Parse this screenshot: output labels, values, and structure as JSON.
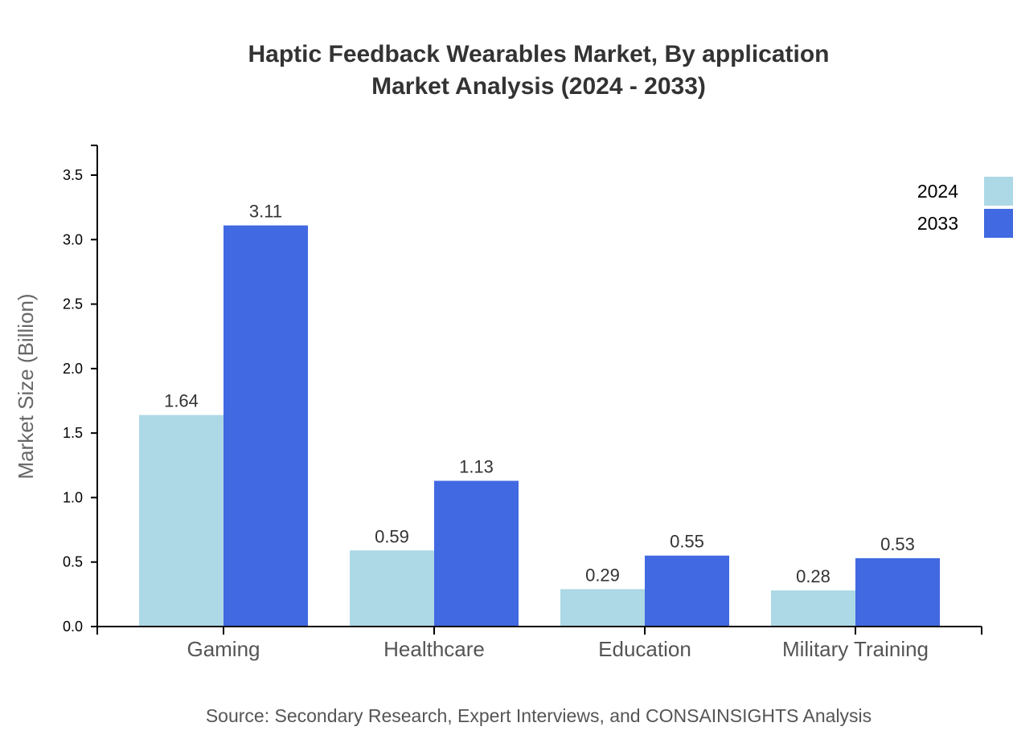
{
  "chart_data": {
    "type": "bar",
    "title": "Haptic Feedback Wearables Market, By application",
    "subtitle": "Market Analysis (2024 - 2033)",
    "xlabel": "",
    "ylabel": "Market Size (Billion)",
    "categories": [
      "Gaming",
      "Healthcare",
      "Education",
      "Military Training"
    ],
    "series": [
      {
        "name": "2024",
        "color": "#add8e6",
        "values": [
          1.64,
          0.59,
          0.29,
          0.28
        ],
        "labels": [
          "1.64",
          "0.59",
          "0.29",
          "0.28"
        ]
      },
      {
        "name": "2033",
        "color": "#4169e1",
        "values": [
          3.11,
          1.13,
          0.55,
          0.53
        ],
        "labels": [
          "3.11",
          "1.13",
          "0.55",
          "0.53"
        ]
      }
    ],
    "ylim": [
      0,
      3.5
    ],
    "yticks": [
      "0.0",
      "0.5",
      "1.0",
      "1.5",
      "2.0",
      "2.5",
      "3.0",
      "3.5"
    ],
    "grid": false,
    "legend_position": "top-right",
    "source": "Source: Secondary Research, Expert Interviews, and CONSAINSIGHTS Analysis"
  }
}
